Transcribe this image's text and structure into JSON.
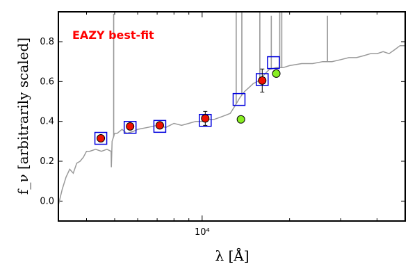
{
  "chart_data": {
    "type": "scatter",
    "annotation": "EAZY best-fit",
    "annotation_color": "#ff0000",
    "xlabel": "λ [Å]",
    "ylabel": "f_ν [arbitrarily scaled]",
    "x_scale": "log",
    "xlim": [
      3200,
      50000
    ],
    "ylim": [
      -0.1,
      0.95
    ],
    "yticks": [
      0.0,
      0.2,
      0.4,
      0.6,
      0.8
    ],
    "ytick_labels": [
      "0.0",
      "0.2",
      "0.4",
      "0.6",
      "0.8"
    ],
    "xtick_labels": [
      {
        "x": 10000,
        "label": "10⁴"
      }
    ],
    "grid": false,
    "colors": {
      "sed_line": "#999999",
      "observed_fill": "#ee1100",
      "observed_edge": "#000000",
      "model_box": "#0000dd",
      "extra_fill": "#88ee22"
    },
    "series": [
      {
        "name": "best-fit SED",
        "kind": "line",
        "points": [
          [
            3200,
            -0.02
          ],
          [
            3300,
            0.06
          ],
          [
            3400,
            0.12
          ],
          [
            3500,
            0.16
          ],
          [
            3600,
            0.14
          ],
          [
            3700,
            0.19
          ],
          [
            3800,
            0.2
          ],
          [
            3900,
            0.22
          ],
          [
            4000,
            0.25
          ],
          [
            4100,
            0.25
          ],
          [
            4300,
            0.26
          ],
          [
            4500,
            0.25
          ],
          [
            4700,
            0.26
          ],
          [
            4860,
            0.25
          ],
          [
            4861,
            0.25
          ],
          [
            4862,
            0.25
          ],
          [
            4870,
            0.17
          ],
          [
            4900,
            0.3
          ],
          [
            5000,
            0.34
          ],
          [
            5100,
            0.34
          ],
          [
            5300,
            0.36
          ],
          [
            5500,
            0.34
          ],
          [
            5800,
            0.35
          ],
          [
            6000,
            0.36
          ],
          [
            6500,
            0.37
          ],
          [
            7000,
            0.38
          ],
          [
            7500,
            0.37
          ],
          [
            8000,
            0.39
          ],
          [
            8500,
            0.38
          ],
          [
            9000,
            0.39
          ],
          [
            9500,
            0.4
          ],
          [
            10000,
            0.4
          ],
          [
            10500,
            0.41
          ],
          [
            11000,
            0.41
          ],
          [
            11500,
            0.42
          ],
          [
            12000,
            0.43
          ],
          [
            12500,
            0.44
          ],
          [
            13000,
            0.48
          ],
          [
            13500,
            0.52
          ],
          [
            14000,
            0.55
          ],
          [
            14500,
            0.57
          ],
          [
            15000,
            0.59
          ],
          [
            15500,
            0.6
          ],
          [
            16000,
            0.62
          ],
          [
            16500,
            0.64
          ],
          [
            17000,
            0.66
          ],
          [
            18000,
            0.67
          ],
          [
            19000,
            0.67
          ],
          [
            20000,
            0.68
          ],
          [
            22000,
            0.69
          ],
          [
            24000,
            0.69
          ],
          [
            26000,
            0.7
          ],
          [
            28000,
            0.7
          ],
          [
            30000,
            0.71
          ],
          [
            32000,
            0.72
          ],
          [
            34000,
            0.72
          ],
          [
            36000,
            0.73
          ],
          [
            38000,
            0.74
          ],
          [
            40000,
            0.74
          ],
          [
            42000,
            0.75
          ],
          [
            44000,
            0.74
          ],
          [
            46000,
            0.76
          ],
          [
            48000,
            0.78
          ],
          [
            50000,
            0.78
          ]
        ],
        "emission_lines": [
          {
            "x": 4960,
            "peak": 0.94
          },
          {
            "x": 13100,
            "peak": 0.95
          },
          {
            "x": 13700,
            "peak": 0.95
          },
          {
            "x": 15800,
            "peak": 0.95
          },
          {
            "x": 17300,
            "peak": 0.93
          },
          {
            "x": 18500,
            "peak": 0.95
          },
          {
            "x": 18800,
            "peak": 0.95
          },
          {
            "x": 27000,
            "peak": 0.93
          }
        ]
      },
      {
        "name": "model fluxes",
        "kind": "square-marker",
        "points": [
          [
            4480,
            0.315
          ],
          [
            5650,
            0.37
          ],
          [
            7150,
            0.375
          ],
          [
            10250,
            0.405
          ],
          [
            13400,
            0.51
          ],
          [
            16100,
            0.61
          ],
          [
            17600,
            0.695
          ]
        ]
      },
      {
        "name": "observed fluxes",
        "kind": "circle-marker",
        "points": [
          [
            4480,
            0.315
          ],
          [
            5650,
            0.375
          ],
          [
            7150,
            0.38
          ],
          [
            10250,
            0.415
          ],
          [
            16100,
            0.605
          ]
        ],
        "errors": [
          0.01,
          0.012,
          0.012,
          0.035,
          0.058
        ]
      },
      {
        "name": "other fluxes",
        "kind": "circle-marker",
        "points": [
          [
            13600,
            0.41
          ],
          [
            18000,
            0.64
          ]
        ]
      }
    ]
  }
}
